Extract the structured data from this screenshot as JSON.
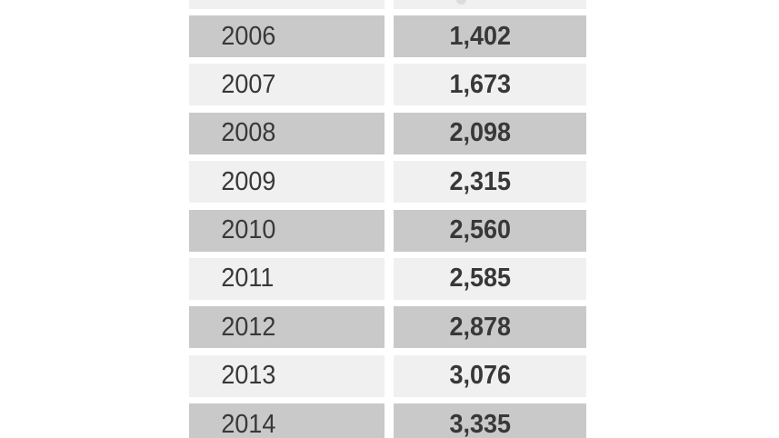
{
  "table": {
    "rows": [
      {
        "year": "2006",
        "value": "1,402"
      },
      {
        "year": "2007",
        "value": "1,673"
      },
      {
        "year": "2008",
        "value": "2,098"
      },
      {
        "year": "2009",
        "value": "2,315"
      },
      {
        "year": "2010",
        "value": "2,560"
      },
      {
        "year": "2011",
        "value": "2,585"
      },
      {
        "year": "2012",
        "value": "2,878"
      },
      {
        "year": "2013",
        "value": "3,076"
      },
      {
        "year": "2014",
        "value": "3,335"
      }
    ]
  },
  "colors": {
    "row_dark": "#c9c9c9",
    "row_light": "#f0f0f0",
    "text": "#383838",
    "background": "#ffffff"
  },
  "chart_data": {
    "type": "table",
    "categories": [
      "2006",
      "2007",
      "2008",
      "2009",
      "2010",
      "2011",
      "2012",
      "2013",
      "2014"
    ],
    "values": [
      1402,
      1673,
      2098,
      2315,
      2560,
      2585,
      2878,
      3076,
      3335
    ],
    "layout_hints": {
      "striped_rows": true,
      "cropped_top_row_visible": true,
      "last_row_clipped_bottom": true
    }
  }
}
